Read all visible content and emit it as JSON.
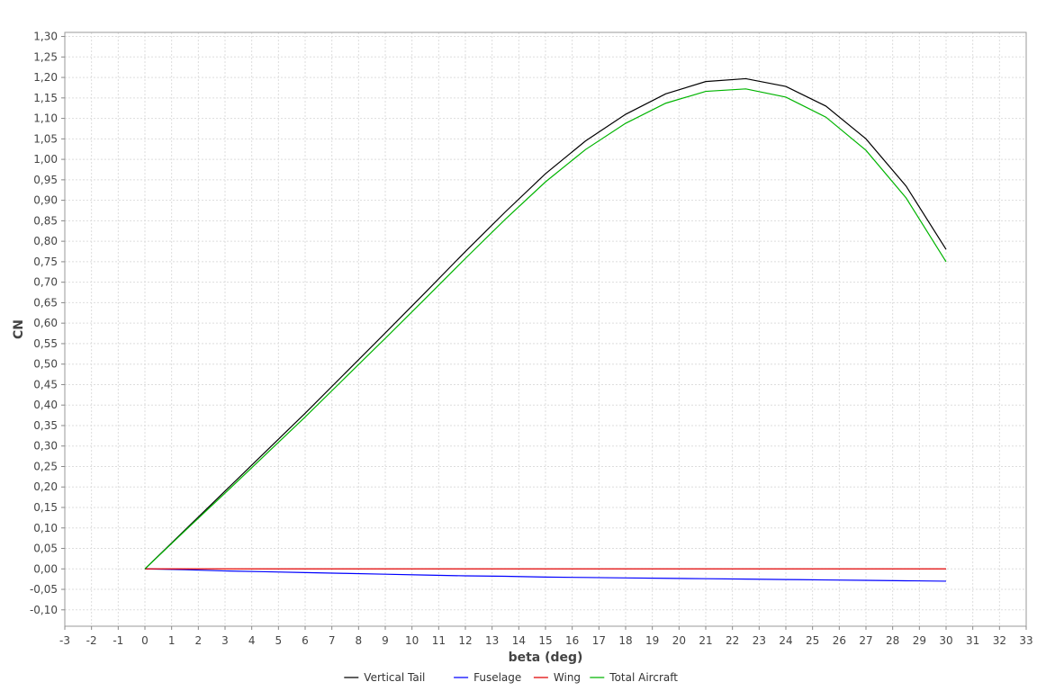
{
  "chart_data": {
    "type": "line",
    "title": "",
    "xlabel": "beta (deg)",
    "ylabel": "CN",
    "xlim": [
      -3,
      33
    ],
    "ylim": [
      -0.14,
      1.31
    ],
    "x_ticks": [
      "-3",
      "-2",
      "-1",
      "0",
      "1",
      "2",
      "3",
      "4",
      "5",
      "6",
      "7",
      "8",
      "9",
      "10",
      "11",
      "12",
      "13",
      "14",
      "15",
      "16",
      "17",
      "18",
      "19",
      "20",
      "21",
      "22",
      "23",
      "24",
      "25",
      "26",
      "27",
      "28",
      "29",
      "30",
      "31",
      "32",
      "33"
    ],
    "y_ticks": [
      "-0,10",
      "-0,05",
      "0,00",
      "0,05",
      "0,10",
      "0,15",
      "0,20",
      "0,25",
      "0,30",
      "0,35",
      "0,40",
      "0,45",
      "0,50",
      "0,55",
      "0,60",
      "0,65",
      "0,70",
      "0,75",
      "0,80",
      "0,85",
      "0,90",
      "0,95",
      "1,00",
      "1,05",
      "1,10",
      "1,15",
      "1,20",
      "1,25",
      "1,30"
    ],
    "grid": true,
    "legend_position": "bottom",
    "x": [
      0,
      1.5,
      3,
      4.5,
      6,
      7.5,
      9,
      10.5,
      12,
      13.5,
      15,
      16.5,
      18,
      19.5,
      21,
      22.5,
      24,
      25.5,
      27,
      28.5,
      30
    ],
    "series": [
      {
        "name": "Vertical Tail",
        "color": "#000000",
        "values": [
          0.0,
          0.095,
          0.19,
          0.285,
          0.38,
          0.478,
          0.576,
          0.675,
          0.775,
          0.872,
          0.965,
          1.045,
          1.11,
          1.16,
          1.19,
          1.197,
          1.178,
          1.13,
          1.05,
          0.935,
          0.78
        ]
      },
      {
        "name": "Fuselage",
        "color": "#0000ff",
        "values": [
          0.0,
          -0.002,
          -0.005,
          -0.007,
          -0.009,
          -0.011,
          -0.013,
          -0.015,
          -0.017,
          -0.018,
          -0.02,
          -0.021,
          -0.022,
          -0.023,
          -0.024,
          -0.025,
          -0.026,
          -0.027,
          -0.028,
          -0.029,
          -0.03
        ]
      },
      {
        "name": "Wing",
        "color": "#e00000",
        "values": [
          0.0,
          0.0,
          0.0,
          0.0,
          0.0,
          0.0,
          0.0,
          0.0,
          0.0,
          0.0,
          0.0,
          0.0,
          0.0,
          0.0,
          0.0,
          0.0,
          0.0,
          0.0,
          0.0,
          0.0,
          0.0
        ]
      },
      {
        "name": "Total Aircraft",
        "color": "#00b400",
        "values": [
          0.0,
          0.093,
          0.185,
          0.278,
          0.371,
          0.467,
          0.563,
          0.66,
          0.758,
          0.854,
          0.945,
          1.024,
          1.088,
          1.137,
          1.166,
          1.172,
          1.152,
          1.103,
          1.022,
          0.906,
          0.75
        ]
      }
    ]
  }
}
